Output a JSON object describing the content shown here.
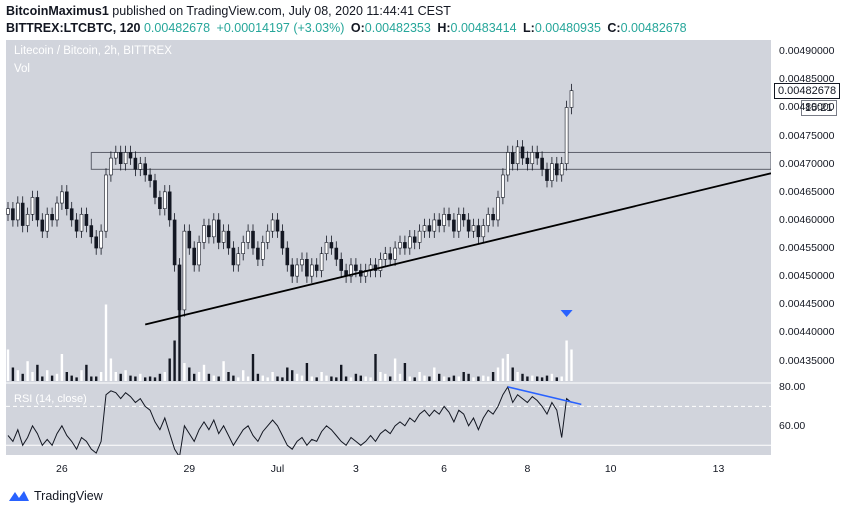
{
  "header": {
    "author": "BitcoinMaximus1",
    "published": "published on TradingView.com, July 08, 2020 11:44:41 CEST",
    "symbol": "BITTREX:LTCBTC, 120",
    "last": "0.00482678",
    "change": "+0.00014197 (+3.03%)",
    "o_label": "O:",
    "o": "0.00482353",
    "h_label": "H:",
    "h": "0.00483414",
    "l_label": "L:",
    "l": "0.00480935",
    "c_label": "C:",
    "c": "0.00482678"
  },
  "chart": {
    "title": "Litecoin / Bitcoin, 2h, BITTREX",
    "vol_label": "Vol",
    "rsi_label": "RSI (14, close)",
    "price_tag": "0.00482678",
    "time_tag": "15:21"
  },
  "footer": {
    "brand": "TradingView"
  },
  "chart_data": {
    "type": "candlestick",
    "price_axis": {
      "ticks": [
        "0.00490000",
        "0.00485000",
        "0.00480000",
        "0.00475000",
        "0.00470000",
        "0.00465000",
        "0.00460000",
        "0.00455000",
        "0.00450000",
        "0.00445000",
        "0.00440000",
        "0.00435000"
      ],
      "range": [
        0.00431,
        0.00492
      ]
    },
    "rsi_axis": {
      "ticks": [
        "80.00",
        "60.00"
      ],
      "range": [
        45,
        82
      ]
    },
    "x_ticks": [
      "26",
      "29",
      "Jul",
      "3",
      "6",
      "8",
      "10",
      "13"
    ],
    "close_series": [
      0.00462,
      0.0046,
      0.00463,
      0.00459,
      0.00461,
      0.00464,
      0.0046,
      0.00458,
      0.00461,
      0.0046,
      0.00463,
      0.00465,
      0.00462,
      0.0046,
      0.00458,
      0.00461,
      0.00459,
      0.00457,
      0.00455,
      0.00458,
      0.00468,
      0.00471,
      0.00472,
      0.0047,
      0.00472,
      0.00471,
      0.00469,
      0.0047,
      0.00468,
      0.00467,
      0.00464,
      0.00462,
      0.00465,
      0.0046,
      0.00452,
      0.00444,
      0.00458,
      0.00455,
      0.00452,
      0.00456,
      0.00459,
      0.00457,
      0.0046,
      0.00456,
      0.00458,
      0.00455,
      0.00452,
      0.00454,
      0.00456,
      0.00458,
      0.00455,
      0.00453,
      0.00456,
      0.00458,
      0.0046,
      0.00458,
      0.00455,
      0.00452,
      0.0045,
      0.00452,
      0.00453,
      0.0045,
      0.00452,
      0.00451,
      0.00454,
      0.00456,
      0.00455,
      0.00453,
      0.00451,
      0.0045,
      0.00452,
      0.00451,
      0.0045,
      0.00451,
      0.00452,
      0.00451,
      0.00453,
      0.00454,
      0.00453,
      0.00455,
      0.00456,
      0.00455,
      0.00457,
      0.00456,
      0.00458,
      0.00459,
      0.00458,
      0.0046,
      0.00459,
      0.00461,
      0.0046,
      0.00458,
      0.00461,
      0.0046,
      0.00458,
      0.00459,
      0.00457,
      0.00459,
      0.00461,
      0.0046,
      0.00464,
      0.00468,
      0.00472,
      0.0047,
      0.00473,
      0.00471,
      0.0047,
      0.00472,
      0.00471,
      0.00469,
      0.00467,
      0.0047,
      0.00468,
      0.0047,
      0.0048,
      0.00483
    ],
    "volume": [
      0.35,
      0.15,
      0.12,
      0.08,
      0.22,
      0.1,
      0.18,
      0.05,
      0.12,
      0.06,
      0.08,
      0.3,
      0.1,
      0.06,
      0.04,
      0.12,
      0.18,
      0.05,
      0.05,
      0.1,
      0.85,
      0.25,
      0.1,
      0.08,
      0.12,
      0.06,
      0.05,
      0.08,
      0.04,
      0.05,
      0.04,
      0.08,
      0.1,
      0.25,
      0.45,
      0.85,
      0.2,
      0.15,
      0.08,
      0.1,
      0.18,
      0.08,
      0.06,
      0.05,
      0.22,
      0.1,
      0.06,
      0.04,
      0.12,
      0.05,
      0.3,
      0.08,
      0.06,
      0.04,
      0.1,
      0.05,
      0.04,
      0.15,
      0.12,
      0.08,
      0.06,
      0.2,
      0.05,
      0.04,
      0.1,
      0.06,
      0.05,
      0.04,
      0.18,
      0.05,
      0.04,
      0.08,
      0.06,
      0.05,
      0.04,
      0.3,
      0.1,
      0.08,
      0.05,
      0.25,
      0.08,
      0.2,
      0.05,
      0.04,
      0.1,
      0.06,
      0.05,
      0.15,
      0.08,
      0.05,
      0.04,
      0.06,
      0.05,
      0.1,
      0.08,
      0.04,
      0.05,
      0.06,
      0.05,
      0.1,
      0.15,
      0.25,
      0.3,
      0.15,
      0.1,
      0.08,
      0.05,
      0.06,
      0.05,
      0.04,
      0.06,
      0.08,
      0.04,
      0.05,
      0.45,
      0.35
    ],
    "rsi": [
      55,
      52,
      58,
      50,
      54,
      60,
      56,
      50,
      53,
      50,
      56,
      60,
      55,
      52,
      48,
      54,
      52,
      48,
      46,
      52,
      76,
      78,
      77,
      74,
      77,
      75,
      72,
      74,
      70,
      68,
      62,
      58,
      64,
      56,
      48,
      44,
      60,
      56,
      52,
      58,
      62,
      58,
      63,
      56,
      60,
      55,
      50,
      54,
      58,
      60,
      55,
      52,
      57,
      60,
      63,
      60,
      55,
      50,
      48,
      52,
      54,
      50,
      53,
      52,
      57,
      60,
      58,
      55,
      52,
      50,
      54,
      52,
      50,
      52,
      55,
      52,
      56,
      58,
      56,
      60,
      62,
      60,
      64,
      62,
      66,
      68,
      65,
      68,
      66,
      70,
      67,
      62,
      68,
      66,
      60,
      64,
      58,
      64,
      68,
      66,
      70,
      76,
      80,
      72,
      76,
      74,
      72,
      75,
      73,
      70,
      66,
      72,
      68,
      54,
      74,
      72
    ],
    "resistance_zone": [
      0.00469,
      0.00472
    ],
    "annotations": [
      "ascending support trendline",
      "resistance zone rectangle",
      "RSI bearish divergence line",
      "blue down-arrow marker"
    ]
  }
}
